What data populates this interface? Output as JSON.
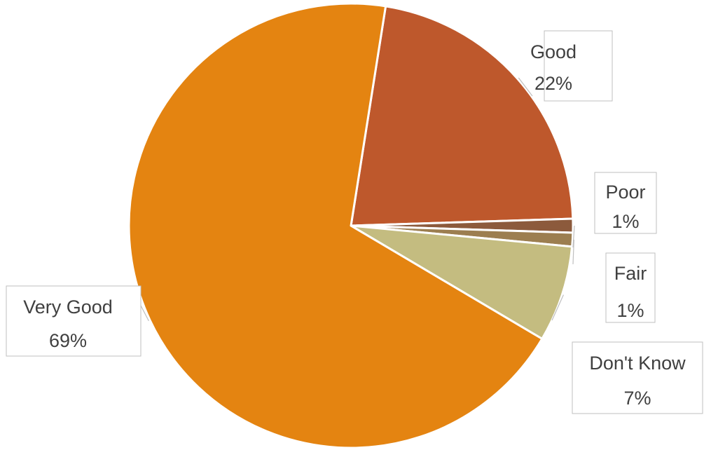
{
  "chart_data": {
    "type": "pie",
    "title": "",
    "start_angle_deg": 9,
    "direction": "clockwise",
    "slices": [
      {
        "name": "Good",
        "value": 22,
        "label": "22%",
        "color": "#BE582C"
      },
      {
        "name": "Poor",
        "value": 1,
        "label": "1%",
        "color": "#8C5A3C"
      },
      {
        "name": "Fair",
        "value": 1,
        "label": "1%",
        "color": "#9C7E50"
      },
      {
        "name": "Don't Know",
        "value": 7,
        "label": "7%",
        "color": "#C4BC80"
      },
      {
        "name": "Very Good",
        "value": 69,
        "label": "69%",
        "color": "#E48411"
      }
    ],
    "data_labels": "callouts",
    "legend": "none"
  }
}
